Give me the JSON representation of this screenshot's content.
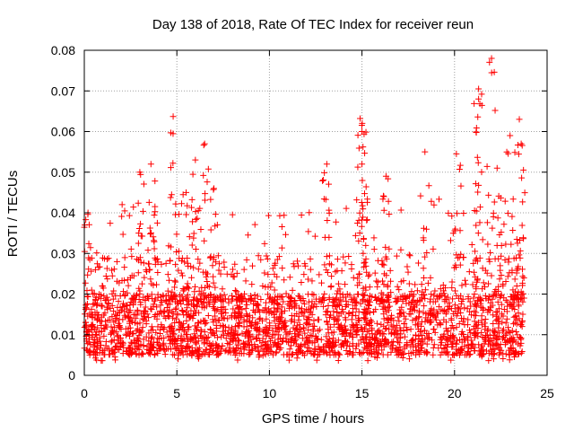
{
  "chart_data": {
    "type": "scatter",
    "title": "Day 138 of 2018, Rate Of TEC Index for receiver reun",
    "xlabel": "GPS time / hours",
    "ylabel": "ROTI / TECUs",
    "xlim": [
      0,
      25
    ],
    "ylim": [
      0,
      0.08
    ],
    "x_ticks": [
      0,
      5,
      10,
      15,
      20,
      25
    ],
    "x_tick_labels": [
      "0",
      "5",
      "10",
      "15",
      "20",
      "25"
    ],
    "y_ticks": [
      0,
      0.01,
      0.02,
      0.03,
      0.04,
      0.05,
      0.06,
      0.07,
      0.08
    ],
    "y_tick_labels": [
      "0",
      "0.01",
      "0.02",
      "0.03",
      "0.04",
      "0.05",
      "0.06",
      "0.07",
      "0.08"
    ],
    "grid": true,
    "marker": "plus",
    "series_color": "#ff0000",
    "data_x_range": [
      0,
      23.7
    ],
    "typical_band": [
      0.005,
      0.02
    ],
    "peaks": [
      {
        "x": 0.2,
        "y": 0.04
      },
      {
        "x": 3.0,
        "y": 0.05
      },
      {
        "x": 3.6,
        "y": 0.052
      },
      {
        "x": 4.8,
        "y": 0.0637
      },
      {
        "x": 5.5,
        "y": 0.045
      },
      {
        "x": 6.0,
        "y": 0.053
      },
      {
        "x": 6.5,
        "y": 0.057
      },
      {
        "x": 7.0,
        "y": 0.046
      },
      {
        "x": 13.1,
        "y": 0.052
      },
      {
        "x": 14.9,
        "y": 0.0632
      },
      {
        "x": 15.0,
        "y": 0.06
      },
      {
        "x": 15.0,
        "y": 0.052
      },
      {
        "x": 16.3,
        "y": 0.049
      },
      {
        "x": 18.4,
        "y": 0.055
      },
      {
        "x": 20.1,
        "y": 0.0545
      },
      {
        "x": 21.3,
        "y": 0.0705
      },
      {
        "x": 21.3,
        "y": 0.068
      },
      {
        "x": 22.0,
        "y": 0.078
      },
      {
        "x": 22.3,
        "y": 0.051
      },
      {
        "x": 23.0,
        "y": 0.059
      },
      {
        "x": 23.5,
        "y": 0.063
      },
      {
        "x": 23.6,
        "y": 0.057
      }
    ]
  }
}
